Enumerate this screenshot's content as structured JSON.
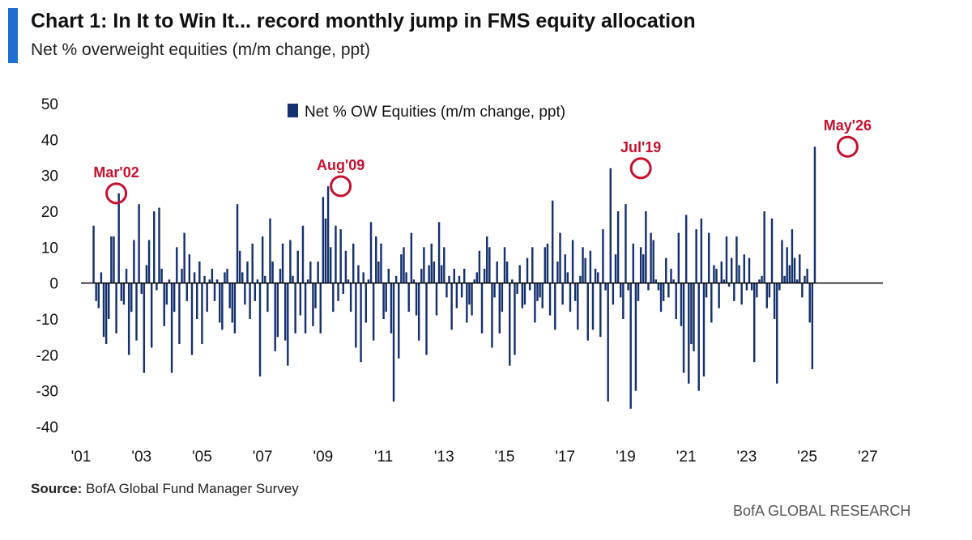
{
  "header": {
    "title": "Chart 1: In It to Win It... record monthly jump in FMS equity allocation",
    "subtitle": "Net % overweight equities (m/m change, ppt)",
    "accent_color": "#1f6fd1"
  },
  "footer": {
    "source_label": "Source:",
    "source_text": "BofA Global Fund Manager Survey",
    "brand": "BofA GLOBAL RESEARCH"
  },
  "chart_data": {
    "type": "bar",
    "title": "Chart 1: In It to Win It... record monthly jump in FMS equity allocation",
    "subtitle": "Net % overweight equities (m/m change, ppt)",
    "xlabel": "",
    "ylabel": "",
    "ylim": [
      -40,
      50
    ],
    "y_ticks": [
      50,
      40,
      30,
      20,
      10,
      0,
      -10,
      -20,
      -30,
      -40
    ],
    "x_range": [
      2001,
      2027.5
    ],
    "x_tick_labels": [
      {
        "label": "'01",
        "year": 2001
      },
      {
        "label": "'03",
        "year": 2003
      },
      {
        "label": "'05",
        "year": 2005
      },
      {
        "label": "'07",
        "year": 2007
      },
      {
        "label": "'09",
        "year": 2009
      },
      {
        "label": "'11",
        "year": 2011
      },
      {
        "label": "'13",
        "year": 2013
      },
      {
        "label": "'15",
        "year": 2015
      },
      {
        "label": "'17",
        "year": 2017
      },
      {
        "label": "'19",
        "year": 2019
      },
      {
        "label": "'21",
        "year": 2021
      },
      {
        "label": "'23",
        "year": 2023
      },
      {
        "label": "'25",
        "year": 2025
      },
      {
        "label": "'27",
        "year": 2027
      }
    ],
    "grid": false,
    "legend_position": "top-center",
    "bar_color": "#14306e",
    "series": [
      {
        "name": "Net % OW Equities (m/m change, ppt)",
        "start": "2001-06",
        "frequency": "monthly",
        "values": [
          16,
          -5,
          -7,
          3,
          -15,
          -17,
          -10,
          13,
          13,
          -14,
          25,
          -5,
          -6,
          4,
          -20,
          -8,
          12,
          -16,
          22,
          -3,
          -25,
          5,
          12,
          -18,
          20,
          -2,
          21,
          4,
          -12,
          -6,
          1,
          -25,
          -8,
          10,
          -17,
          4,
          14,
          -5,
          8,
          -20,
          3,
          -10,
          6,
          -17,
          2,
          -8,
          1,
          4,
          -5,
          1,
          -11,
          -13,
          3,
          4,
          -7,
          -11,
          -14,
          22,
          9,
          3,
          -6,
          6,
          -10,
          11,
          -5,
          1,
          -26,
          13,
          2,
          -8,
          18,
          6,
          -19,
          -15,
          4,
          11,
          -16,
          -23,
          12,
          2,
          -14,
          9,
          -9,
          16,
          -14,
          1,
          6,
          -12,
          -7,
          6,
          -14,
          24,
          18,
          27,
          10,
          -8,
          16,
          -5,
          15,
          -3,
          9,
          1,
          -8,
          11,
          -18,
          5,
          -22,
          3,
          -11,
          1,
          17,
          -16,
          13,
          6,
          11,
          -10,
          -8,
          4,
          -14,
          -33,
          2,
          -21,
          8,
          10,
          3,
          -8,
          14,
          1,
          -9,
          -16,
          4,
          10,
          -20,
          5,
          11,
          6,
          -9,
          17,
          5,
          10,
          -4,
          2,
          -13,
          4,
          -7,
          2,
          -4,
          4,
          -11,
          -6,
          -9,
          1,
          3,
          9,
          -14,
          4,
          13,
          10,
          -18,
          -4,
          6,
          -14,
          -8,
          10,
          6,
          -23,
          1,
          -20,
          -3,
          5,
          -7,
          -6,
          7,
          -2,
          10,
          -11,
          -5,
          -4,
          -7,
          10,
          11,
          -9,
          23,
          -13,
          6,
          14,
          -6,
          8,
          3,
          -8,
          12,
          -5,
          -13,
          2,
          10,
          7,
          -16,
          9,
          -13,
          4,
          3,
          -15,
          15,
          -2,
          -33,
          32,
          -6,
          8,
          20,
          -4,
          -10,
          22,
          -2,
          -35,
          11,
          -30,
          -5,
          10,
          8,
          20,
          -2,
          14,
          12,
          1,
          -2,
          -8,
          -5,
          7,
          -4,
          4,
          1,
          -10,
          14,
          -12,
          -25,
          19,
          -28,
          -17,
          -19,
          15,
          -30,
          18,
          -26,
          -4,
          14,
          -11,
          5,
          4,
          -7,
          6,
          1,
          13,
          -1,
          7,
          -5,
          13,
          5,
          -6,
          8,
          -2,
          7,
          -2,
          -22,
          -4,
          1,
          2,
          20,
          -7,
          -4,
          18,
          -10,
          -28,
          -2,
          12,
          2,
          10,
          5,
          15,
          7,
          1,
          8,
          -4,
          2,
          4,
          -11,
          -24,
          38
        ],
        "annotated_points": [
          {
            "label": "Mar'02",
            "date": "2002-03",
            "value": 25
          },
          {
            "label": "Aug'09",
            "date": "2009-08",
            "value": 27
          },
          {
            "label": "Jul'19",
            "date": "2019-07",
            "value": 32
          },
          {
            "label": "May'26",
            "date": "2026-05",
            "value": 38
          }
        ]
      }
    ]
  }
}
